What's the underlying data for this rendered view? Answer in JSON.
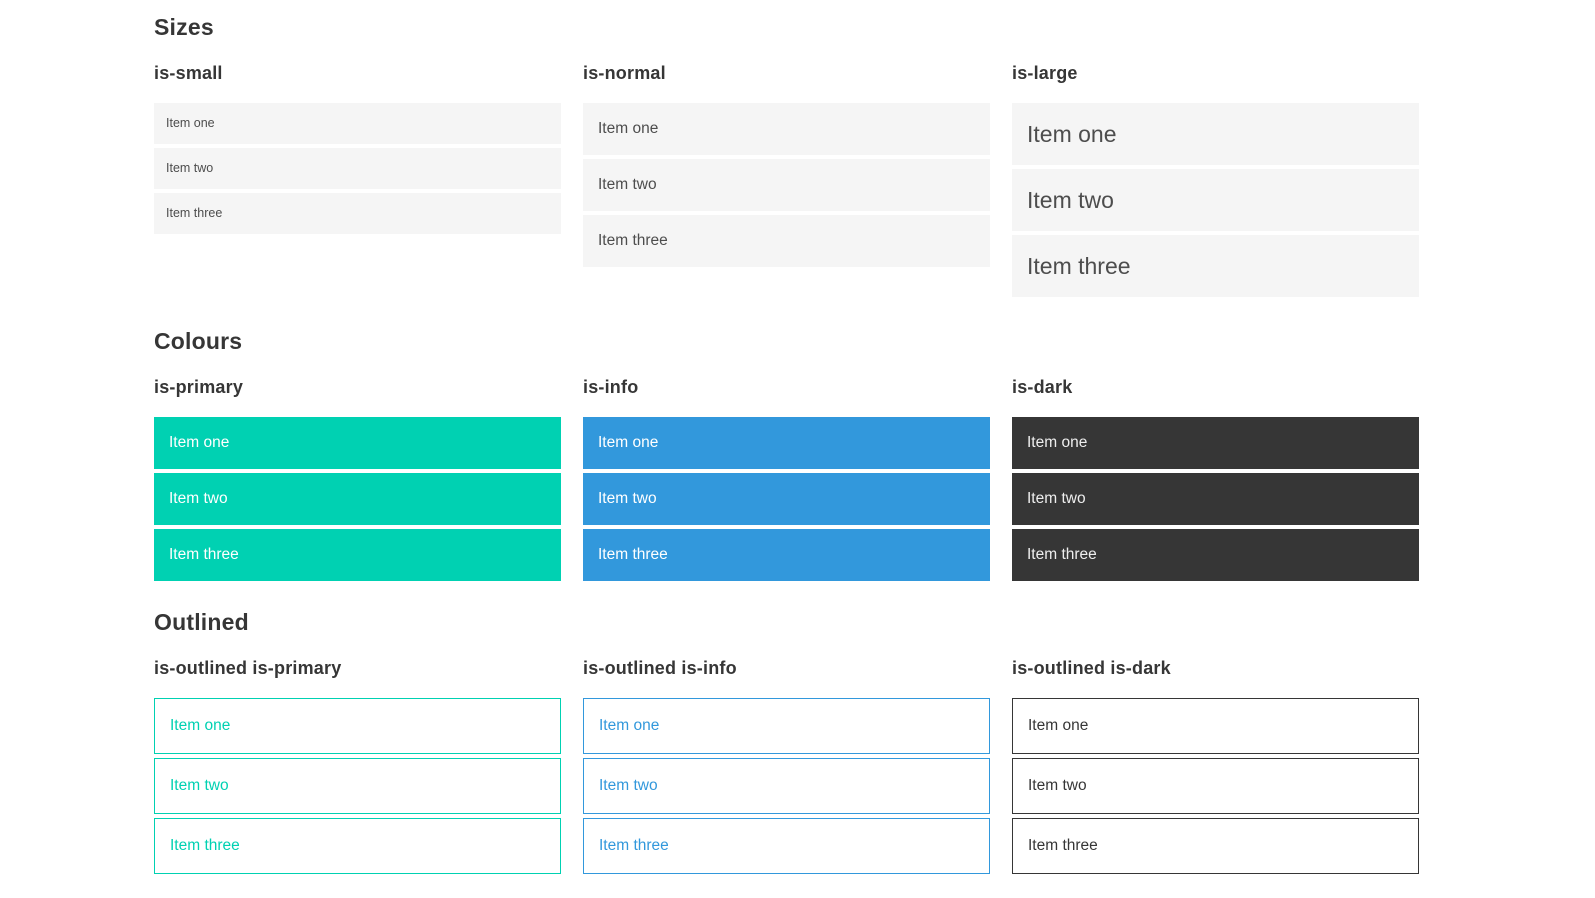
{
  "colors": {
    "primary": "#00d1b2",
    "info": "#3298dc",
    "dark": "#363636",
    "heading_text": "#363636",
    "item_default_bg": "#f5f5f5",
    "item_default_text": "#4d4d4d",
    "item_text_on_color": "#ffffff",
    "page_background": "#ffffff"
  },
  "sections": [
    {
      "title": "Sizes",
      "columns": [
        {
          "heading": "is-small",
          "items": [
            "Item one",
            "Item two",
            "Item three"
          ]
        },
        {
          "heading": "is-normal",
          "items": [
            "Item one",
            "Item two",
            "Item three"
          ]
        },
        {
          "heading": "is-large",
          "items": [
            "Item one",
            "Item two",
            "Item three"
          ]
        }
      ]
    },
    {
      "title": "Colours",
      "columns": [
        {
          "heading": "is-primary",
          "items": [
            "Item one",
            "Item two",
            "Item three"
          ]
        },
        {
          "heading": "is-info",
          "items": [
            "Item one",
            "Item two",
            "Item three"
          ]
        },
        {
          "heading": "is-dark",
          "items": [
            "Item one",
            "Item two",
            "Item three"
          ]
        }
      ]
    },
    {
      "title": "Outlined",
      "columns": [
        {
          "heading": "is-outlined is-primary",
          "items": [
            "Item one",
            "Item two",
            "Item three"
          ]
        },
        {
          "heading": "is-outlined is-info",
          "items": [
            "Item one",
            "Item two",
            "Item three"
          ]
        },
        {
          "heading": "is-outlined is-dark",
          "items": [
            "Item one",
            "Item two",
            "Item three"
          ]
        }
      ]
    }
  ]
}
